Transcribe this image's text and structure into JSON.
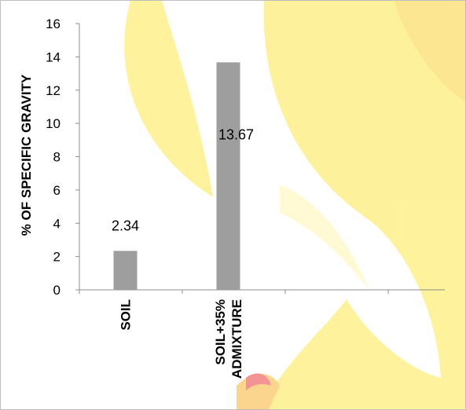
{
  "chart_data": {
    "type": "bar",
    "title": "",
    "xlabel": "",
    "ylabel": "% OF SPECIFIC GRAVITY",
    "categories": [
      "SOIL",
      "SOIL+35% ADMIXTURE"
    ],
    "category_lines": [
      [
        "SOIL"
      ],
      [
        "SOIL+35%",
        "ADMIXTURE"
      ]
    ],
    "values": [
      2.34,
      13.67
    ],
    "data_labels": [
      "2.34",
      "13.67"
    ],
    "ylim": [
      0,
      16
    ],
    "yticks": [
      0,
      2,
      4,
      6,
      8,
      10,
      12,
      14,
      16
    ],
    "grid": false,
    "legend": "none",
    "colors": {
      "bar": "#9e9e9e",
      "axis": "#8c8c8c",
      "background_art_yellow": "#fde94a",
      "background_art_orange": "#f9b233",
      "background_art_red": "#ec3b3b"
    }
  }
}
